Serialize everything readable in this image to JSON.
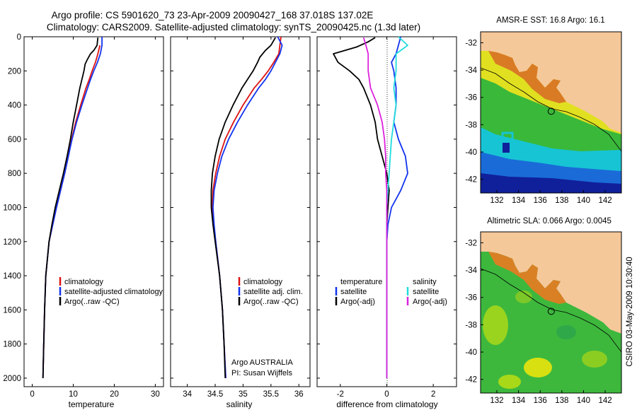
{
  "title": {
    "line1": "Argo profile: CS 5901620_73 23-Apr-2009 20090427_168 37.018S 137.02E",
    "line2": "Climatology: CARS2009. Satellite-adjusted climatology: synTS_20090425.nc (1.3d later)"
  },
  "side_label": "CSIRO 03-May-2009 10:30:40",
  "colors": {
    "climatology": "#dd1111",
    "satellite": "#1133ee",
    "argo": "#000000",
    "sal_satellite": "#22dddd",
    "sal_argo": "#dd22dd",
    "land": "#f5c89a"
  },
  "chart_data": [
    {
      "type": "line",
      "panel": "temperature",
      "xlabel": "temperature",
      "xlim": [
        -2,
        32
      ],
      "ylim": [
        2050,
        0
      ],
      "xticks": [
        "0",
        "10",
        "20",
        "30"
      ],
      "yticks": [
        "0",
        "200",
        "400",
        "600",
        "800",
        "1000",
        "1200",
        "1400",
        "1600",
        "1800",
        "2000"
      ],
      "legend": [
        "climatology",
        "satellite-adjusted climatology",
        "Argo(..raw -QC)"
      ],
      "series": [
        {
          "name": "climatology",
          "color": "#dd1111",
          "depth": [
            50,
            100,
            150,
            200,
            250,
            300,
            400,
            500,
            600,
            700,
            800,
            900,
            1000,
            1200,
            1400,
            1600,
            1800,
            2000
          ],
          "values": [
            16.5,
            16.0,
            15.4,
            14.6,
            13.9,
            13.1,
            11.8,
            10.6,
            9.6,
            8.8,
            7.9,
            6.9,
            5.9,
            4.1,
            3.3,
            3.0,
            2.8,
            2.6
          ]
        },
        {
          "name": "satellite-adjusted climatology",
          "color": "#1133ee",
          "depth": [
            0,
            50,
            100,
            150,
            200,
            250,
            300,
            400,
            500,
            600,
            700,
            800,
            900,
            1000,
            1200,
            1400,
            1600,
            1800,
            2000
          ],
          "values": [
            17.0,
            17.0,
            16.6,
            15.9,
            15.0,
            14.2,
            13.5,
            12.1,
            10.8,
            9.7,
            8.8,
            7.9,
            6.9,
            5.9,
            4.1,
            3.3,
            3.0,
            2.8,
            2.6
          ]
        },
        {
          "name": "Argo(..raw -QC)",
          "color": "#000000",
          "depth": [
            5,
            50,
            80,
            100,
            130,
            160,
            200,
            250,
            300,
            400,
            500,
            600,
            700,
            800,
            900,
            1000,
            1100,
            1200,
            1400,
            1600,
            1800,
            2000
          ],
          "values": [
            16.0,
            15.8,
            15.0,
            14.2,
            13.5,
            12.9,
            12.6,
            12.1,
            11.6,
            10.8,
            10.0,
            9.3,
            8.5,
            7.6,
            6.6,
            5.6,
            4.8,
            4.1,
            3.3,
            3.0,
            2.8,
            2.6
          ]
        }
      ]
    },
    {
      "type": "line",
      "panel": "salinity",
      "xlabel": "salinity",
      "xlim": [
        33.7,
        36.2
      ],
      "ylim": [
        2050,
        0
      ],
      "xticks": [
        "34",
        "34.5",
        "35",
        "35.5",
        "36"
      ],
      "legend": [
        "climatology",
        "satellite adj. clim.",
        "Argo(..raw -QC)"
      ],
      "annotations": [
        "Argo AUSTRALIA",
        "PI: Susan Wijffels"
      ],
      "series": [
        {
          "name": "climatology",
          "color": "#dd1111",
          "depth": [
            0,
            100,
            150,
            200,
            250,
            300,
            400,
            500,
            600,
            700,
            800,
            900,
            1000,
            1100,
            1200,
            1400,
            1600,
            1800,
            2000
          ],
          "values": [
            35.68,
            35.64,
            35.55,
            35.45,
            35.33,
            35.2,
            35.0,
            34.83,
            34.68,
            34.58,
            34.51,
            34.46,
            34.45,
            34.47,
            34.51,
            34.58,
            34.63,
            34.66,
            34.69
          ]
        },
        {
          "name": "satellite adj. clim.",
          "color": "#1133ee",
          "depth": [
            0,
            50,
            100,
            150,
            200,
            250,
            300,
            400,
            500,
            600,
            700,
            800,
            900,
            1000,
            1100,
            1200,
            1400,
            1600,
            1800,
            2000
          ],
          "values": [
            35.62,
            35.7,
            35.66,
            35.58,
            35.5,
            35.4,
            35.28,
            35.08,
            34.9,
            34.74,
            34.62,
            34.54,
            34.48,
            34.46,
            34.48,
            34.51,
            34.58,
            34.63,
            34.66,
            34.69
          ]
        },
        {
          "name": "Argo(..raw -QC)",
          "color": "#000000",
          "depth": [
            5,
            50,
            80,
            120,
            150,
            200,
            250,
            300,
            400,
            500,
            600,
            700,
            800,
            900,
            1000,
            1100,
            1200,
            1400,
            1600,
            1800,
            2000
          ],
          "values": [
            35.58,
            35.5,
            35.4,
            35.3,
            35.26,
            35.18,
            35.08,
            34.98,
            34.82,
            34.68,
            34.57,
            34.5,
            34.45,
            34.43,
            34.43,
            34.46,
            34.5,
            34.58,
            34.63,
            34.66,
            34.68
          ]
        }
      ]
    },
    {
      "type": "line",
      "panel": "difference",
      "xlabel": "difference from climatology",
      "xlim": [
        -3,
        3
      ],
      "ylim": [
        2050,
        0
      ],
      "xticks": [
        "-2",
        "0",
        "2"
      ],
      "legend": {
        "temperature": [
          "temperature",
          "satellite",
          "Argo(-adj)"
        ],
        "salinity": [
          "salinity",
          "satellite",
          "Argo(-adj)"
        ]
      },
      "series": [
        {
          "name": "temperature satellite",
          "color": "#1133ee",
          "depth": [
            0,
            50,
            100,
            150,
            200,
            300,
            400,
            500,
            600,
            700,
            800,
            900,
            1000,
            1100,
            1200,
            1400,
            1600,
            1800,
            2000
          ],
          "values": [
            0.6,
            0.5,
            0.4,
            0.2,
            0.3,
            0.4,
            0.4,
            0.3,
            0.5,
            0.8,
            0.9,
            0.6,
            0.2,
            0.05,
            0.0,
            0.0,
            0.0,
            0.0,
            0.0
          ]
        },
        {
          "name": "temperature Argo(-adj)",
          "color": "#000000",
          "depth": [
            5,
            30,
            60,
            100,
            150,
            200,
            250,
            300,
            400,
            500,
            600,
            700,
            800,
            900,
            1000,
            1100,
            1200,
            1400,
            1600,
            1800,
            2000
          ],
          "values": [
            -0.5,
            -0.8,
            -1.3,
            -2.3,
            -2.1,
            -1.6,
            -1.2,
            -1.0,
            -0.7,
            -0.5,
            -0.4,
            -0.2,
            0.0,
            0.1,
            0.05,
            0.0,
            0.0,
            0.0,
            0.0,
            0.0,
            0.0
          ]
        },
        {
          "name": "salinity satellite",
          "color": "#22dddd",
          "depth": [
            0,
            50,
            100,
            200,
            300,
            400,
            500,
            600,
            700,
            800,
            900,
            1000,
            1200,
            1400,
            1600,
            1800,
            2000
          ],
          "values": [
            0.5,
            0.9,
            0.4,
            0.4,
            0.3,
            0.4,
            0.3,
            0.2,
            0.15,
            0.1,
            0.05,
            0.0,
            0.0,
            0.0,
            0.0,
            0.0,
            0.0
          ]
        },
        {
          "name": "salinity Argo(-adj)",
          "color": "#dd22dd",
          "depth": [
            5,
            50,
            100,
            200,
            300,
            400,
            500,
            600,
            700,
            800,
            900,
            1000,
            1100,
            1200,
            1400,
            1600,
            1800,
            2000
          ],
          "values": [
            -1.0,
            -0.9,
            -0.8,
            -0.8,
            -0.7,
            -0.4,
            -0.2,
            -0.1,
            -0.05,
            -0.05,
            0.0,
            0.0,
            0.0,
            0.0,
            0.0,
            0.0,
            0.0,
            0.0
          ]
        }
      ]
    },
    {
      "type": "heatmap",
      "panel": "map-sst",
      "title": "AMSR-E SST: 16.8 Argo: 16.1",
      "xlim": [
        130.5,
        143.5
      ],
      "ylim": [
        -43,
        -31.2
      ],
      "xticks": [
        "132",
        "134",
        "136",
        "138",
        "140",
        "142"
      ],
      "yticks": [
        "-32",
        "-34",
        "-36",
        "-38",
        "-40",
        "-42"
      ],
      "float_position": {
        "lon": 137.02,
        "lat": -37.018
      }
    },
    {
      "type": "heatmap",
      "panel": "map-sla",
      "title": "Altimetric SLA: 0.066 Argo: 0.0045",
      "xlim": [
        130.5,
        143.5
      ],
      "ylim": [
        -43,
        -31.2
      ],
      "xticks": [
        "132",
        "134",
        "136",
        "138",
        "140",
        "142"
      ],
      "yticks": [
        "-32",
        "-34",
        "-36",
        "-38",
        "-40",
        "-42"
      ],
      "float_position": {
        "lon": 137.02,
        "lat": -37.018
      }
    }
  ]
}
